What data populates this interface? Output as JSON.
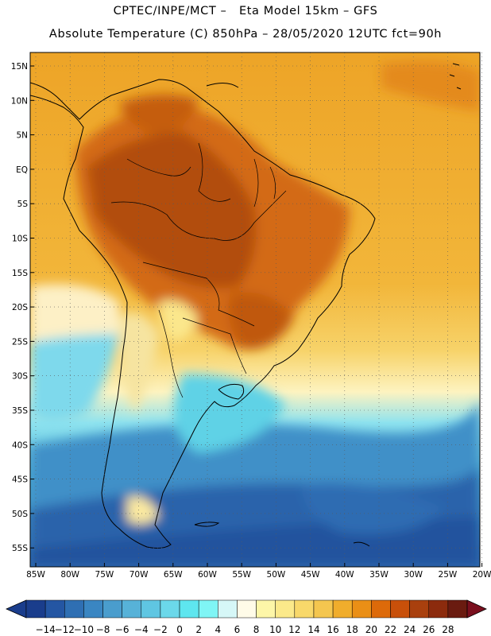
{
  "header": {
    "line1": "CPTEC/INPE/MCT –   Eta Model 15km – GFS",
    "line2": "Absolute Temperature (C) 850hPa – 28/05/2020 12UTC fct=90h"
  },
  "map": {
    "lat_labels": [
      "15N",
      "10N",
      "5N",
      "EQ",
      "5S",
      "10S",
      "15S",
      "20S",
      "25S",
      "30S",
      "35S",
      "40S",
      "45S",
      "50S",
      "55S"
    ],
    "lon_labels": [
      "85W",
      "80W",
      "75W",
      "70W",
      "65W",
      "60W",
      "55W",
      "50W",
      "45W",
      "40W",
      "35W",
      "30W",
      "25W",
      "20W"
    ]
  },
  "colorbar": {
    "labels": [
      "-14",
      "-12",
      "-10",
      "-8",
      "-6",
      "-4",
      "-2",
      "0",
      "2",
      "4",
      "6",
      "8",
      "10",
      "12",
      "14",
      "16",
      "18",
      "20",
      "22",
      "24",
      "26",
      "28"
    ],
    "colors": [
      "#1a3d8c",
      "#2456a3",
      "#2f6fb3",
      "#3a86c2",
      "#4a9dcd",
      "#57b2d8",
      "#5fc6e2",
      "#6bd8ea",
      "#5ee6ef",
      "#7ff5f5",
      "#d6f7f7",
      "#fffbe8",
      "#fdf6a8",
      "#fbe98a",
      "#f8d86a",
      "#f4c64f",
      "#f0ad2c",
      "#ea8f16",
      "#dd6a0a",
      "#c8500a",
      "#a9400e",
      "#8c2b0d",
      "#6a1b10"
    ]
  }
}
